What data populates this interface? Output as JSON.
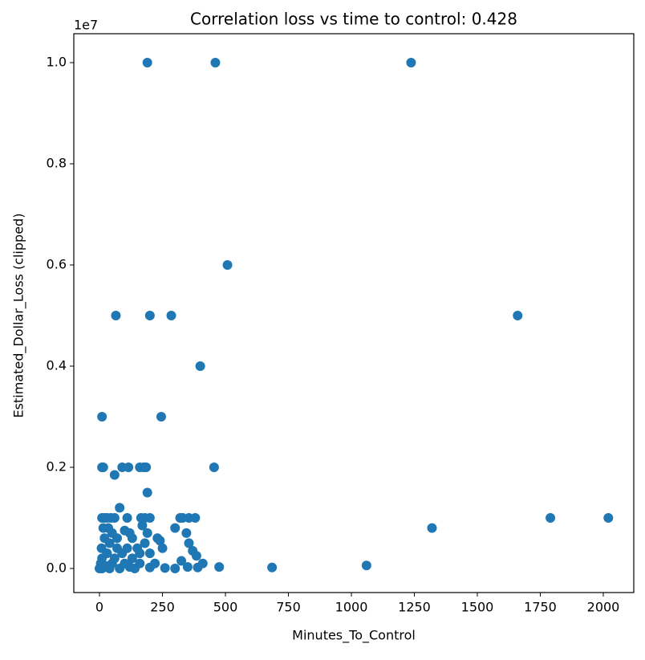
{
  "chart_data": {
    "type": "scatter",
    "title": "Correlation loss vs time to control: 0.428",
    "x_label": "Minutes_To_Control",
    "y_label": "Estimated_Dollar_Loss (clipped)",
    "y_offset_label": "1e7",
    "color": "#1f77b4",
    "x": [
      190,
      460,
      1237,
      508,
      65,
      200,
      285,
      1660,
      400,
      10,
      245,
      10,
      15,
      90,
      115,
      160,
      175,
      185,
      455,
      60,
      190,
      80,
      10,
      20,
      30,
      45,
      60,
      110,
      165,
      180,
      200,
      320,
      330,
      355,
      380,
      1790,
      2020,
      1320,
      300,
      345,
      15,
      50,
      100,
      170,
      240,
      230,
      355,
      370,
      385,
      410,
      475,
      685,
      1060,
      325,
      250,
      20,
      40,
      70,
      90,
      130,
      150,
      180,
      200,
      10,
      30,
      5,
      0,
      10,
      25,
      50,
      80,
      120,
      160,
      200,
      260,
      300,
      350,
      390,
      140,
      220,
      60,
      100,
      40,
      110,
      130,
      160,
      8,
      120,
      190,
      70,
      35
    ],
    "values": [
      10000000,
      10000000,
      10000000,
      6000000,
      5000000,
      5000000,
      5000000,
      5000000,
      4000000,
      3000000,
      3000000,
      2000000,
      2000000,
      2000000,
      2000000,
      2000000,
      2000000,
      2000000,
      2000000,
      1850000,
      1500000,
      1200000,
      1000000,
      1000000,
      1000000,
      1000000,
      1000000,
      1000000,
      1000000,
      1000000,
      1000000,
      1000000,
      1000000,
      1000000,
      1000000,
      1000000,
      1000000,
      800000,
      800000,
      700000,
      800000,
      700000,
      750000,
      850000,
      550000,
      600000,
      500000,
      350000,
      250000,
      100000,
      30000,
      20000,
      60000,
      150000,
      400000,
      600000,
      500000,
      400000,
      300000,
      200000,
      400000,
      500000,
      300000,
      200000,
      300000,
      100000,
      0,
      0,
      50000,
      100000,
      0,
      30000,
      100000,
      20000,
      10000,
      0,
      30000,
      20000,
      0,
      100000,
      200000,
      100000,
      0,
      400000,
      600000,
      300000,
      400000,
      700000,
      700000,
      600000,
      800000
    ],
    "xlim": [
      -102,
      2121
    ],
    "ylim": [
      -476000,
      10571000
    ],
    "xticks": [
      0,
      250,
      500,
      750,
      1000,
      1250,
      1500,
      1750,
      2000
    ],
    "yticks": [
      {
        "value": 0,
        "label": "0.0"
      },
      {
        "value": 2000000,
        "label": "0.2"
      },
      {
        "value": 4000000,
        "label": "0.4"
      },
      {
        "value": 6000000,
        "label": "0.6"
      },
      {
        "value": 8000000,
        "label": "0.8"
      },
      {
        "value": 10000000,
        "label": "1.0"
      }
    ],
    "grid": false
  }
}
